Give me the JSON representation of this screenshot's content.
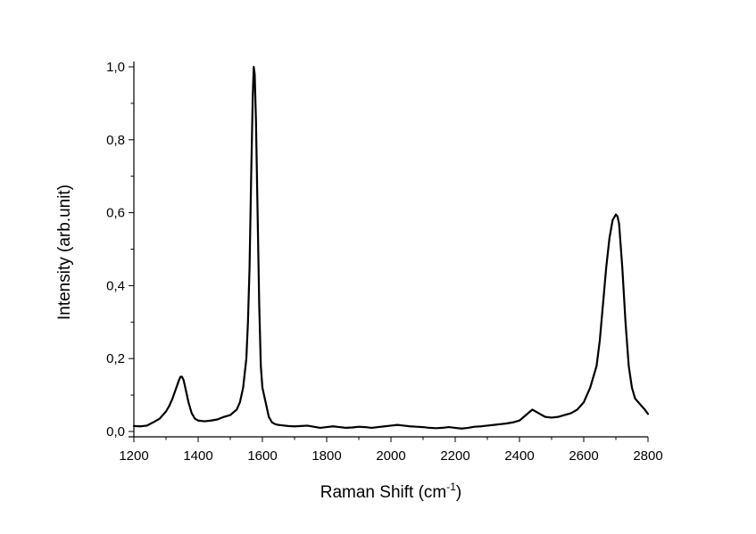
{
  "chart_data": {
    "type": "line",
    "title": "",
    "xlabel": "Raman Shift (cm",
    "xlabel_superscript": "-1",
    "xlabel_suffix": ")",
    "ylabel": "Intensity (arb.unit)",
    "xlim": [
      1200,
      2800
    ],
    "ylim": [
      0.0,
      1.0
    ],
    "x_ticks": [
      1200,
      1400,
      1600,
      1800,
      2000,
      2200,
      2400,
      2600,
      2800
    ],
    "x_tick_labels": [
      "1200",
      "1400",
      "1600",
      "1800",
      "2000",
      "2200",
      "2400",
      "2600",
      "2800"
    ],
    "y_ticks": [
      0.0,
      0.2,
      0.4,
      0.6,
      0.8,
      1.0
    ],
    "y_tick_labels": [
      "0,0",
      "0,2",
      "0,4",
      "0,6",
      "0,8",
      "1,0"
    ],
    "grid": false,
    "legend": "none",
    "line_color": "#000000",
    "series": [
      {
        "x": [
          1200,
          1220,
          1240,
          1260,
          1280,
          1300,
          1310,
          1320,
          1330,
          1340,
          1345,
          1350,
          1355,
          1360,
          1370,
          1380,
          1390,
          1400,
          1420,
          1440,
          1460,
          1480,
          1500,
          1520,
          1530,
          1540,
          1550,
          1555,
          1560,
          1565,
          1570,
          1573,
          1576,
          1580,
          1585,
          1590,
          1595,
          1600,
          1610,
          1620,
          1630,
          1640,
          1650,
          1660,
          1680,
          1700,
          1720,
          1740,
          1760,
          1780,
          1800,
          1820,
          1840,
          1860,
          1880,
          1900,
          1920,
          1940,
          1960,
          1980,
          2000,
          2020,
          2040,
          2060,
          2080,
          2100,
          2120,
          2140,
          2160,
          2180,
          2200,
          2220,
          2240,
          2260,
          2280,
          2300,
          2320,
          2340,
          2360,
          2380,
          2400,
          2420,
          2440,
          2460,
          2480,
          2500,
          2520,
          2540,
          2560,
          2580,
          2600,
          2620,
          2640,
          2650,
          2660,
          2670,
          2680,
          2690,
          2700,
          2705,
          2710,
          2720,
          2730,
          2740,
          2750,
          2760,
          2770,
          2780,
          2790,
          2800
        ],
        "y": [
          0.015,
          0.014,
          0.016,
          0.025,
          0.035,
          0.055,
          0.07,
          0.09,
          0.115,
          0.14,
          0.15,
          0.15,
          0.14,
          0.12,
          0.08,
          0.05,
          0.035,
          0.03,
          0.028,
          0.03,
          0.033,
          0.04,
          0.045,
          0.06,
          0.08,
          0.12,
          0.2,
          0.3,
          0.45,
          0.7,
          0.92,
          1.0,
          0.98,
          0.85,
          0.6,
          0.35,
          0.18,
          0.12,
          0.08,
          0.04,
          0.025,
          0.02,
          0.018,
          0.017,
          0.015,
          0.014,
          0.015,
          0.016,
          0.013,
          0.01,
          0.012,
          0.014,
          0.012,
          0.01,
          0.011,
          0.013,
          0.012,
          0.01,
          0.012,
          0.014,
          0.016,
          0.018,
          0.016,
          0.014,
          0.013,
          0.012,
          0.01,
          0.009,
          0.01,
          0.012,
          0.01,
          0.008,
          0.01,
          0.013,
          0.014,
          0.016,
          0.018,
          0.02,
          0.022,
          0.025,
          0.03,
          0.045,
          0.06,
          0.05,
          0.04,
          0.038,
          0.04,
          0.045,
          0.05,
          0.06,
          0.08,
          0.12,
          0.18,
          0.25,
          0.35,
          0.45,
          0.53,
          0.58,
          0.595,
          0.59,
          0.57,
          0.45,
          0.3,
          0.18,
          0.12,
          0.09,
          0.08,
          0.07,
          0.06,
          0.048
        ]
      }
    ]
  }
}
